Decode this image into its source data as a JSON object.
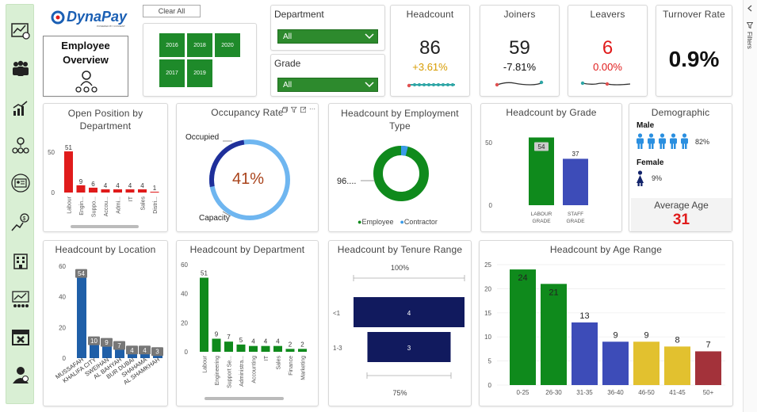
{
  "colors": {
    "green": "#0f8a1c",
    "blue": "#1f5fa8",
    "navy": "#111a5e",
    "indigo": "#3d4cb8",
    "yellow": "#e2c12f",
    "red": "#e01b1b",
    "lightblue": "#6fb6f0",
    "darkred": "#a3323a"
  },
  "logo": {
    "brand": "DynaPay",
    "tagline": "POWERED BY CONSENT"
  },
  "title": {
    "line1": "Employee",
    "line2": "Overview"
  },
  "clear_all": "Clear All",
  "years": {
    "items": [
      "2016",
      "2018",
      "2020",
      "2017",
      "2019"
    ]
  },
  "filters": {
    "department_label": "Department",
    "department_value": "All",
    "grade_label": "Grade",
    "grade_value": "All"
  },
  "kpis": {
    "headcount": {
      "title": "Headcount",
      "value": "86",
      "change": "+3.61%"
    },
    "joiners": {
      "title": "Joiners",
      "value": "59",
      "change": "-7.81%"
    },
    "leavers": {
      "title": "Leavers",
      "value": "6",
      "change": "0.00%"
    },
    "turnover": {
      "title": "Turnover Rate",
      "value": "0.9%"
    }
  },
  "open_position": {
    "title": "Open Position by Department",
    "ticks": [
      "50",
      "0"
    ]
  },
  "occupancy": {
    "title": "Occupancy Rate",
    "value": "41%",
    "occupied": "Occupied",
    "capacity": "Capacity",
    "occupied_fraction": 0.41
  },
  "employment_type": {
    "title": "Headcount by Employment Type",
    "value_label": "96....",
    "legend_employee": "Employee",
    "legend_contractor": "Contractor"
  },
  "grade": {
    "title": "Headcount by Grade",
    "ticks": [
      "50",
      "0"
    ]
  },
  "demographic": {
    "title": "Demographic",
    "male_label": "Male",
    "male_pct": "82%",
    "female_label": "Female",
    "female_pct": "9%",
    "avg_age_label": "Average Age",
    "avg_age_value": "31"
  },
  "location": {
    "title": "Headcount by Location",
    "ticks": [
      "60",
      "40",
      "20",
      "0"
    ]
  },
  "department": {
    "title": "Headcount by Department",
    "ticks": [
      "60",
      "40",
      "20",
      "0"
    ]
  },
  "tenure": {
    "title": "Headcount by Tenure Range",
    "top_pct": "100%",
    "bottom_pct": "75%"
  },
  "age": {
    "title": "Headcount by Age Range",
    "ticks": [
      "25",
      "20",
      "15",
      "10",
      "5",
      "0"
    ]
  },
  "filters_pane_label": "Filters",
  "chart_data": [
    {
      "type": "bar",
      "title": "Open Position by Department",
      "categories": [
        "Labour",
        "Engin...",
        "Suppo...",
        "Accou...",
        "Admi...",
        "IT",
        "Sales",
        "Distri..."
      ],
      "values": [
        51,
        9,
        6,
        4,
        4,
        4,
        4,
        1
      ],
      "ylim": [
        0,
        55
      ]
    },
    {
      "type": "pie",
      "title": "Occupancy Rate",
      "labels": [
        "Occupied",
        "Capacity"
      ],
      "values": [
        41,
        59
      ]
    },
    {
      "type": "pie",
      "title": "Headcount by Employment Type",
      "labels": [
        "Employee",
        "Contractor"
      ],
      "values": [
        96,
        4
      ]
    },
    {
      "type": "bar",
      "title": "Headcount by Grade",
      "categories": [
        "LABOUR GRADE",
        "STAFF GRADE"
      ],
      "values": [
        54,
        37
      ],
      "ylim": [
        0,
        60
      ]
    },
    {
      "type": "bar",
      "title": "Headcount by Location",
      "categories": [
        "MUSSAFAH",
        "KHALIFA CITY",
        "SWEIHAN",
        "AL BAHYAH",
        "BUR DUBAI",
        "SHAHAMA",
        "AL SHAMKHAH"
      ],
      "values": [
        54,
        10,
        9,
        7,
        4,
        4,
        3
      ],
      "ylim": [
        0,
        60
      ]
    },
    {
      "type": "bar",
      "title": "Headcount by Department",
      "categories": [
        "Labour",
        "Engineering",
        "Support Se...",
        "Administra...",
        "Accounting",
        "IT",
        "Sales",
        "Finance",
        "Marketing"
      ],
      "values": [
        51,
        9,
        7,
        5,
        4,
        4,
        4,
        2,
        2
      ],
      "ylim": [
        0,
        60
      ]
    },
    {
      "type": "bar",
      "title": "Headcount by Tenure Range",
      "categories": [
        "<1",
        "1-3"
      ],
      "values": [
        4,
        3
      ]
    },
    {
      "type": "bar",
      "title": "Headcount by Age Range",
      "categories": [
        "0-25",
        "26-30",
        "31-35",
        "36-40",
        "46-50",
        "41-45",
        "50+"
      ],
      "values": [
        24,
        21,
        13,
        9,
        9,
        8,
        7
      ],
      "ylim": [
        0,
        25
      ]
    }
  ]
}
